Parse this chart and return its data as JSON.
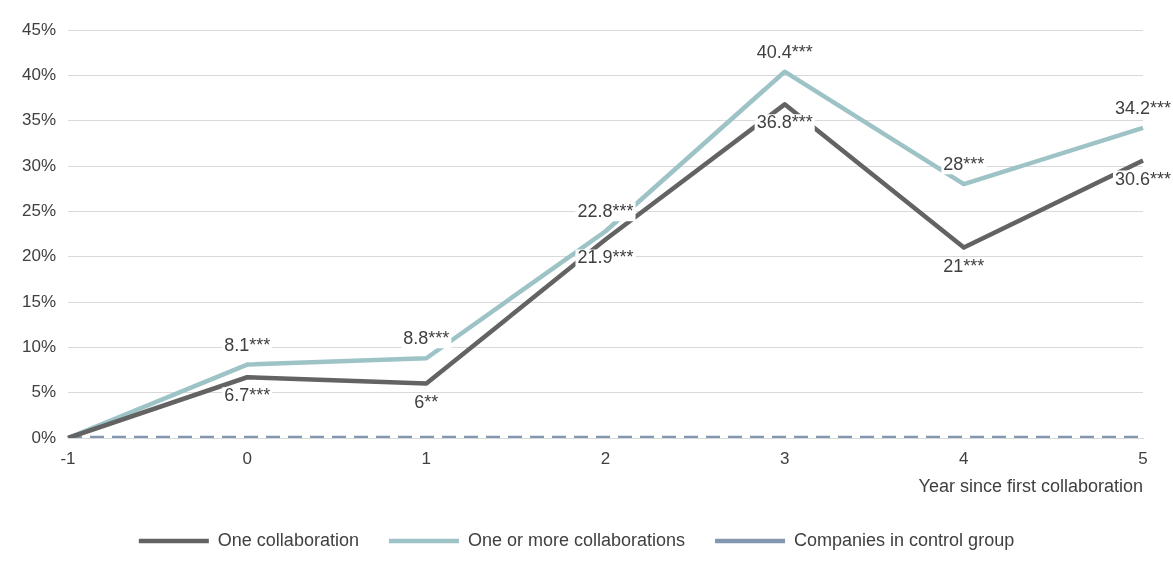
{
  "chart_data": {
    "type": "line",
    "xlabel": "Year since first collaboration",
    "categories": [
      "-1",
      "0",
      "1",
      "2",
      "3",
      "4",
      "5"
    ],
    "series": [
      {
        "name": "One collaboration",
        "color": "#636363",
        "values": [
          0,
          6.7,
          6,
          21.9,
          36.8,
          21,
          30.6
        ],
        "value_labels": [
          null,
          "6.7***",
          "6**",
          "21.9***",
          "36.8***",
          "21***",
          "30.6***"
        ]
      },
      {
        "name": "One or more collaborations",
        "color": "#9dc3c6",
        "values": [
          0,
          8.1,
          8.8,
          22.8,
          40.4,
          28,
          34.2
        ],
        "value_labels": [
          null,
          "8.1***",
          "8.8***",
          "22.8***",
          "40.4***",
          "28***",
          "34.2***"
        ]
      },
      {
        "name": "Companies in control group",
        "color": "#8497b0",
        "line_style": "dashed",
        "values": [
          0,
          0,
          0,
          0,
          0,
          0,
          0
        ]
      }
    ],
    "ylim": [
      0,
      45
    ],
    "yticks": [
      {
        "value": 0,
        "label": "0%"
      },
      {
        "value": 5,
        "label": "5%"
      },
      {
        "value": 10,
        "label": "10%"
      },
      {
        "value": 15,
        "label": "15%"
      },
      {
        "value": 20,
        "label": "20%"
      },
      {
        "value": 25,
        "label": "25%"
      },
      {
        "value": 30,
        "label": "30%"
      },
      {
        "value": 35,
        "label": "35%"
      },
      {
        "value": 40,
        "label": "40%"
      },
      {
        "value": 45,
        "label": "45%"
      }
    ],
    "grid": "y",
    "legend": "bottom",
    "marker": "none"
  }
}
